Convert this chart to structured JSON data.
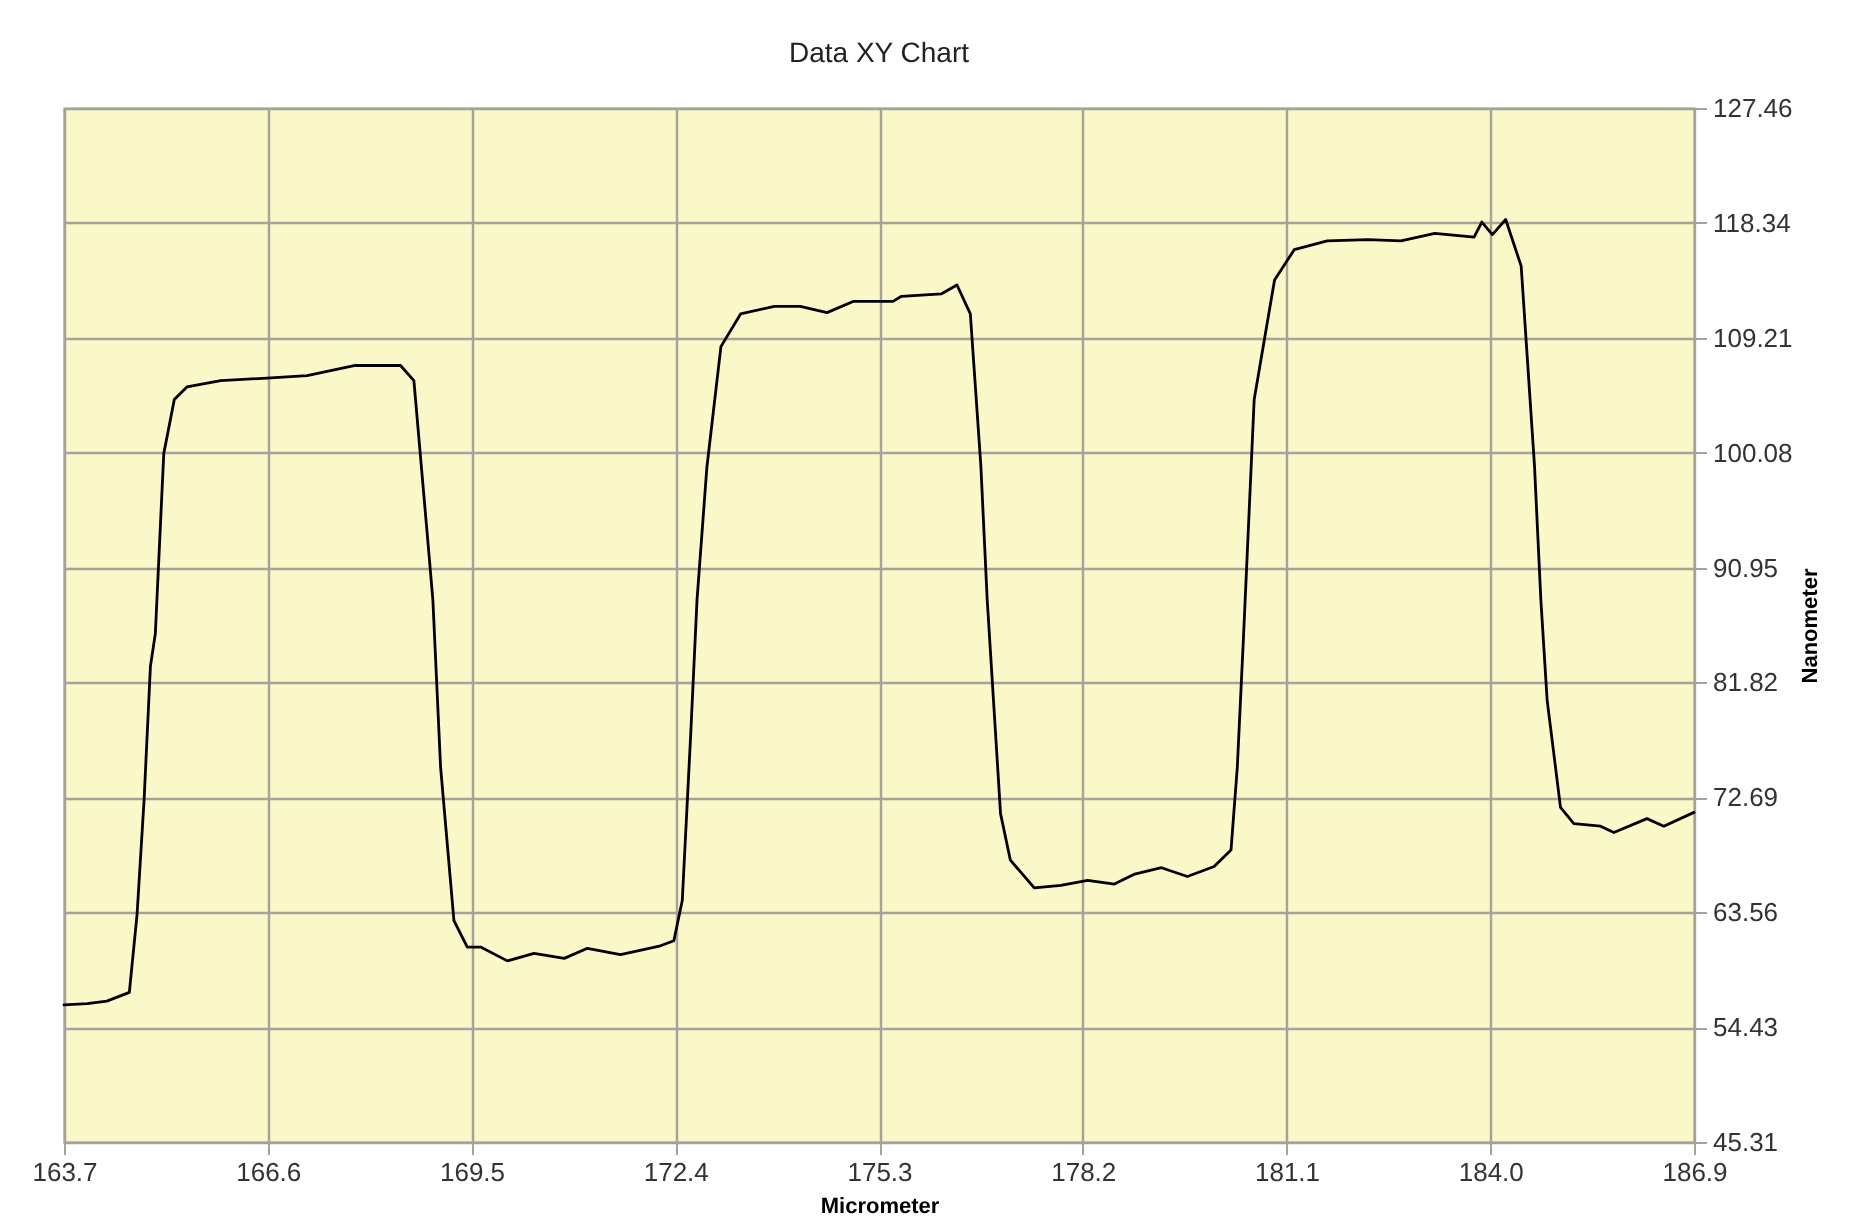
{
  "chart_data": {
    "type": "line",
    "title": "Data XY Chart",
    "xlabel": "Micrometer",
    "ylabel": "Nanometer",
    "color": "#000000",
    "grid": true,
    "marker": "none",
    "line_style": "solid",
    "x": [
      163.7,
      164.03,
      164.31,
      164.63,
      164.74,
      164.84,
      164.93,
      165.0,
      165.12,
      165.27,
      165.45,
      165.93,
      166.59,
      167.16,
      167.83,
      168.49,
      168.68,
      168.87,
      168.95,
      169.06,
      169.25,
      169.44,
      169.63,
      170.01,
      170.39,
      170.82,
      171.15,
      171.62,
      172.19,
      172.38,
      172.5,
      172.62,
      172.71,
      172.85,
      173.05,
      173.33,
      173.81,
      174.18,
      174.56,
      174.94,
      175.5,
      175.62,
      176.19,
      176.41,
      176.6,
      176.75,
      176.84,
      177.03,
      177.17,
      177.51,
      177.89,
      178.27,
      178.65,
      178.94,
      179.32,
      179.69,
      180.07,
      180.31,
      180.4,
      180.49,
      180.64,
      180.93,
      181.21,
      181.68,
      182.26,
      182.73,
      183.21,
      183.77,
      183.88,
      184.03,
      184.22,
      184.44,
      184.63,
      184.72,
      184.81,
      185.0,
      185.19,
      185.57,
      185.76,
      186.23,
      186.47,
      186.9
    ],
    "values": [
      56.2,
      56.3,
      56.5,
      57.2,
      63.4,
      72.5,
      83.1,
      85.7,
      100.0,
      104.3,
      105.3,
      105.8,
      106.0,
      106.2,
      107.0,
      107.0,
      105.8,
      93.6,
      88.4,
      75.1,
      62.9,
      60.8,
      60.8,
      59.7,
      60.3,
      59.9,
      60.7,
      60.2,
      60.9,
      61.3,
      64.5,
      77.7,
      88.4,
      98.9,
      108.5,
      111.1,
      111.7,
      111.7,
      111.2,
      112.1,
      112.1,
      112.5,
      112.7,
      113.4,
      111.1,
      99.0,
      88.4,
      71.4,
      67.7,
      65.5,
      65.7,
      66.1,
      65.8,
      66.6,
      67.1,
      66.4,
      67.2,
      68.5,
      75.1,
      85.7,
      104.3,
      113.8,
      116.2,
      116.9,
      117.0,
      116.9,
      117.5,
      117.2,
      118.4,
      117.4,
      118.6,
      114.9,
      99.0,
      88.4,
      80.4,
      71.9,
      70.6,
      70.4,
      69.9,
      71.0,
      70.4,
      71.5
    ],
    "xlim": [
      163.7,
      186.9
    ],
    "ylim": [
      45.31,
      127.46
    ],
    "xticks": [
      163.7,
      166.6,
      169.5,
      172.4,
      175.3,
      178.2,
      181.1,
      {
        "value": 184,
        "label": "184.0"
      },
      186.9
    ],
    "yticks": [
      45.31,
      54.43,
      63.56,
      72.69,
      81.82,
      90.95,
      100.08,
      109.21,
      118.34,
      127.46
    ]
  }
}
